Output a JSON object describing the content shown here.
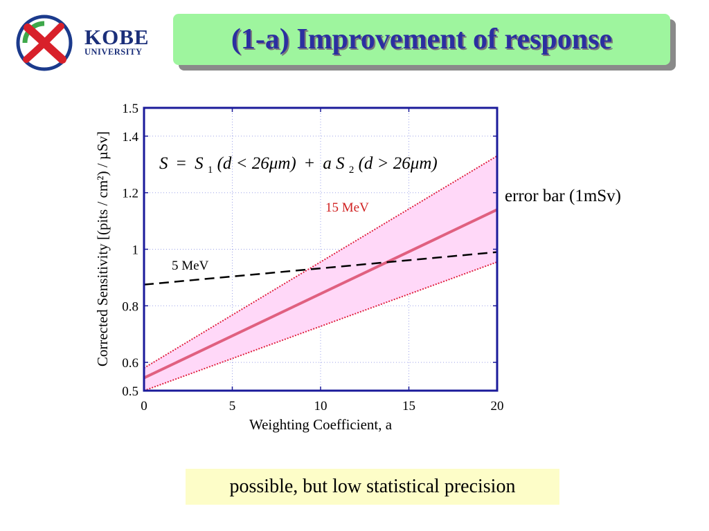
{
  "logo": {
    "line1": "KOBE",
    "line2": "UNIVERSITY"
  },
  "title": "(1-a) Improvement of response",
  "chart_data": {
    "type": "line",
    "xlabel": "Weighting Coefficient, a",
    "ylabel": "Corrected Sensitivity [(pits / cm²) / µSv]",
    "xlim": [
      0,
      20
    ],
    "ylim": [
      0.5,
      1.5
    ],
    "x_ticks": [
      0,
      5,
      10,
      15,
      20
    ],
    "y_ticks": [
      0.5,
      0.6,
      0.8,
      1,
      1.2,
      1.4,
      1.5
    ],
    "y_tick_labels": [
      "0.5",
      "0.6",
      "0.8",
      "1",
      "1.2",
      "1.4",
      "1.5"
    ],
    "grid": true,
    "formula": {
      "S": "S",
      "eq": "=",
      "S1": "S",
      "sub1": "1",
      "cond1": "(d < 26μm)",
      "plus": "+",
      "a": "a",
      "S2": "S",
      "sub2": "2",
      "cond2": "(d > 26μm)"
    },
    "series": [
      {
        "name": "15 MeV",
        "style": "solid",
        "color": "#e06080",
        "x": [
          0,
          20
        ],
        "y": [
          0.545,
          1.14
        ]
      },
      {
        "name": "5 MeV",
        "style": "dashed",
        "color": "#000000",
        "x": [
          0,
          20
        ],
        "y": [
          0.875,
          0.99
        ]
      }
    ],
    "error_band": {
      "x": [
        0,
        20
      ],
      "upper": [
        0.58,
        1.33
      ],
      "lower": [
        0.5,
        0.955
      ],
      "fill": "#ffd8f8",
      "edge_color": "#e02040"
    },
    "annotation": "error bar (1mSv)"
  },
  "note": "possible, but low statistical precision"
}
